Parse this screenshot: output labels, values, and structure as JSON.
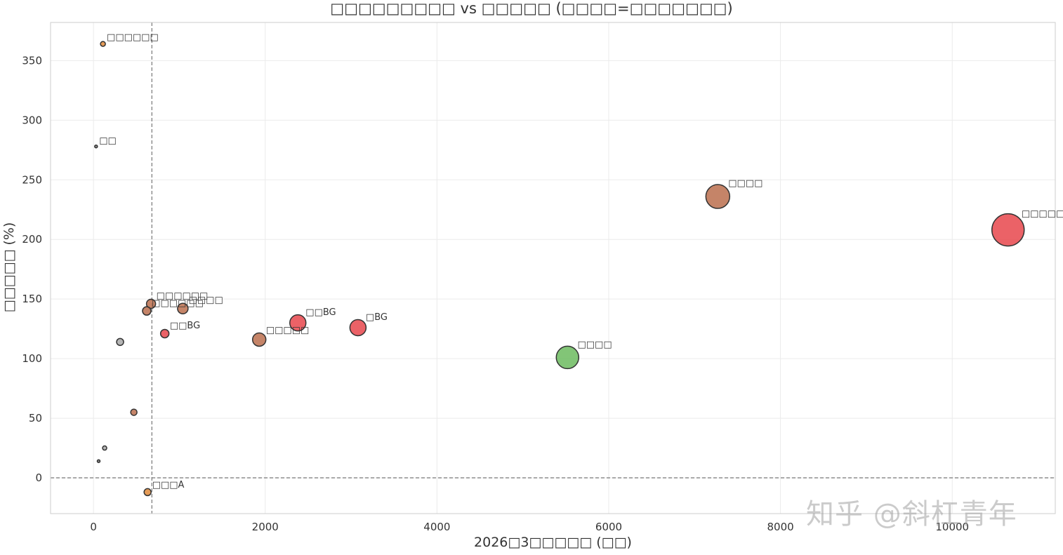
{
  "chart_data": {
    "type": "scatter",
    "title": "□□□□□□□□□ vs □□□□□ (□□□□=□□□□□□□)",
    "xlabel": "2026□3□□□□□ (□□)",
    "ylabel": "□□□□□ (%)",
    "xlim": [
      -500,
      11200
    ],
    "ylim": [
      -30,
      382
    ],
    "xticks": [
      0,
      2000,
      4000,
      6000,
      8000,
      10000
    ],
    "yticks": [
      0,
      50,
      100,
      150,
      200,
      250,
      300,
      350
    ],
    "grid": true,
    "reference_lines": {
      "x": 680,
      "y": 0
    },
    "points": [
      {
        "label": "□□□□□BG",
        "x": 10650,
        "y": 208,
        "size": 46,
        "color": "#e8474c"
      },
      {
        "label": "□□□□",
        "x": 7270,
        "y": 236,
        "size": 34,
        "color": "#bb6e4e"
      },
      {
        "label": "□□□□",
        "x": 5520,
        "y": 101,
        "size": 32,
        "color": "#6cbb5f"
      },
      {
        "label": "□BG",
        "x": 3080,
        "y": 126,
        "size": 23,
        "color": "#e8474c"
      },
      {
        "label": "□□BG",
        "x": 2380,
        "y": 130,
        "size": 23,
        "color": "#e8474c"
      },
      {
        "label": "□□□□□",
        "x": 1930,
        "y": 116,
        "size": 19,
        "color": "#bb6e4e"
      },
      {
        "label": "□□□□",
        "x": 1040,
        "y": 142,
        "size": 15,
        "color": "#bb6e4e"
      },
      {
        "label": "□□□□□□",
        "x": 670,
        "y": 146,
        "size": 13,
        "color": "#bb6e4e"
      },
      {
        "label": "□□□□□□",
        "x": 620,
        "y": 140,
        "size": 12,
        "color": "#bb6e4e"
      },
      {
        "label": "□□BG",
        "x": 830,
        "y": 121,
        "size": 12,
        "color": "#e8474c"
      },
      {
        "label": "",
        "x": 310,
        "y": 114,
        "size": 10,
        "color": "#a8a8a8"
      },
      {
        "label": "",
        "x": 470,
        "y": 55,
        "size": 9,
        "color": "#bb6e4e"
      },
      {
        "label": "",
        "x": 130,
        "y": 25,
        "size": 6,
        "color": "#a8a8a8"
      },
      {
        "label": "",
        "x": 60,
        "y": 14,
        "size": 4,
        "color": "#777777"
      },
      {
        "label": "□□",
        "x": 30,
        "y": 278,
        "size": 4,
        "color": "#777777"
      },
      {
        "label": "□□□□□□",
        "x": 110,
        "y": 364,
        "size": 7,
        "color": "#e08a3a"
      },
      {
        "label": "□□□A",
        "x": 630,
        "y": -12,
        "size": 10,
        "color": "#e08a3a"
      }
    ]
  },
  "watermark": "知乎 @斜杠青年"
}
